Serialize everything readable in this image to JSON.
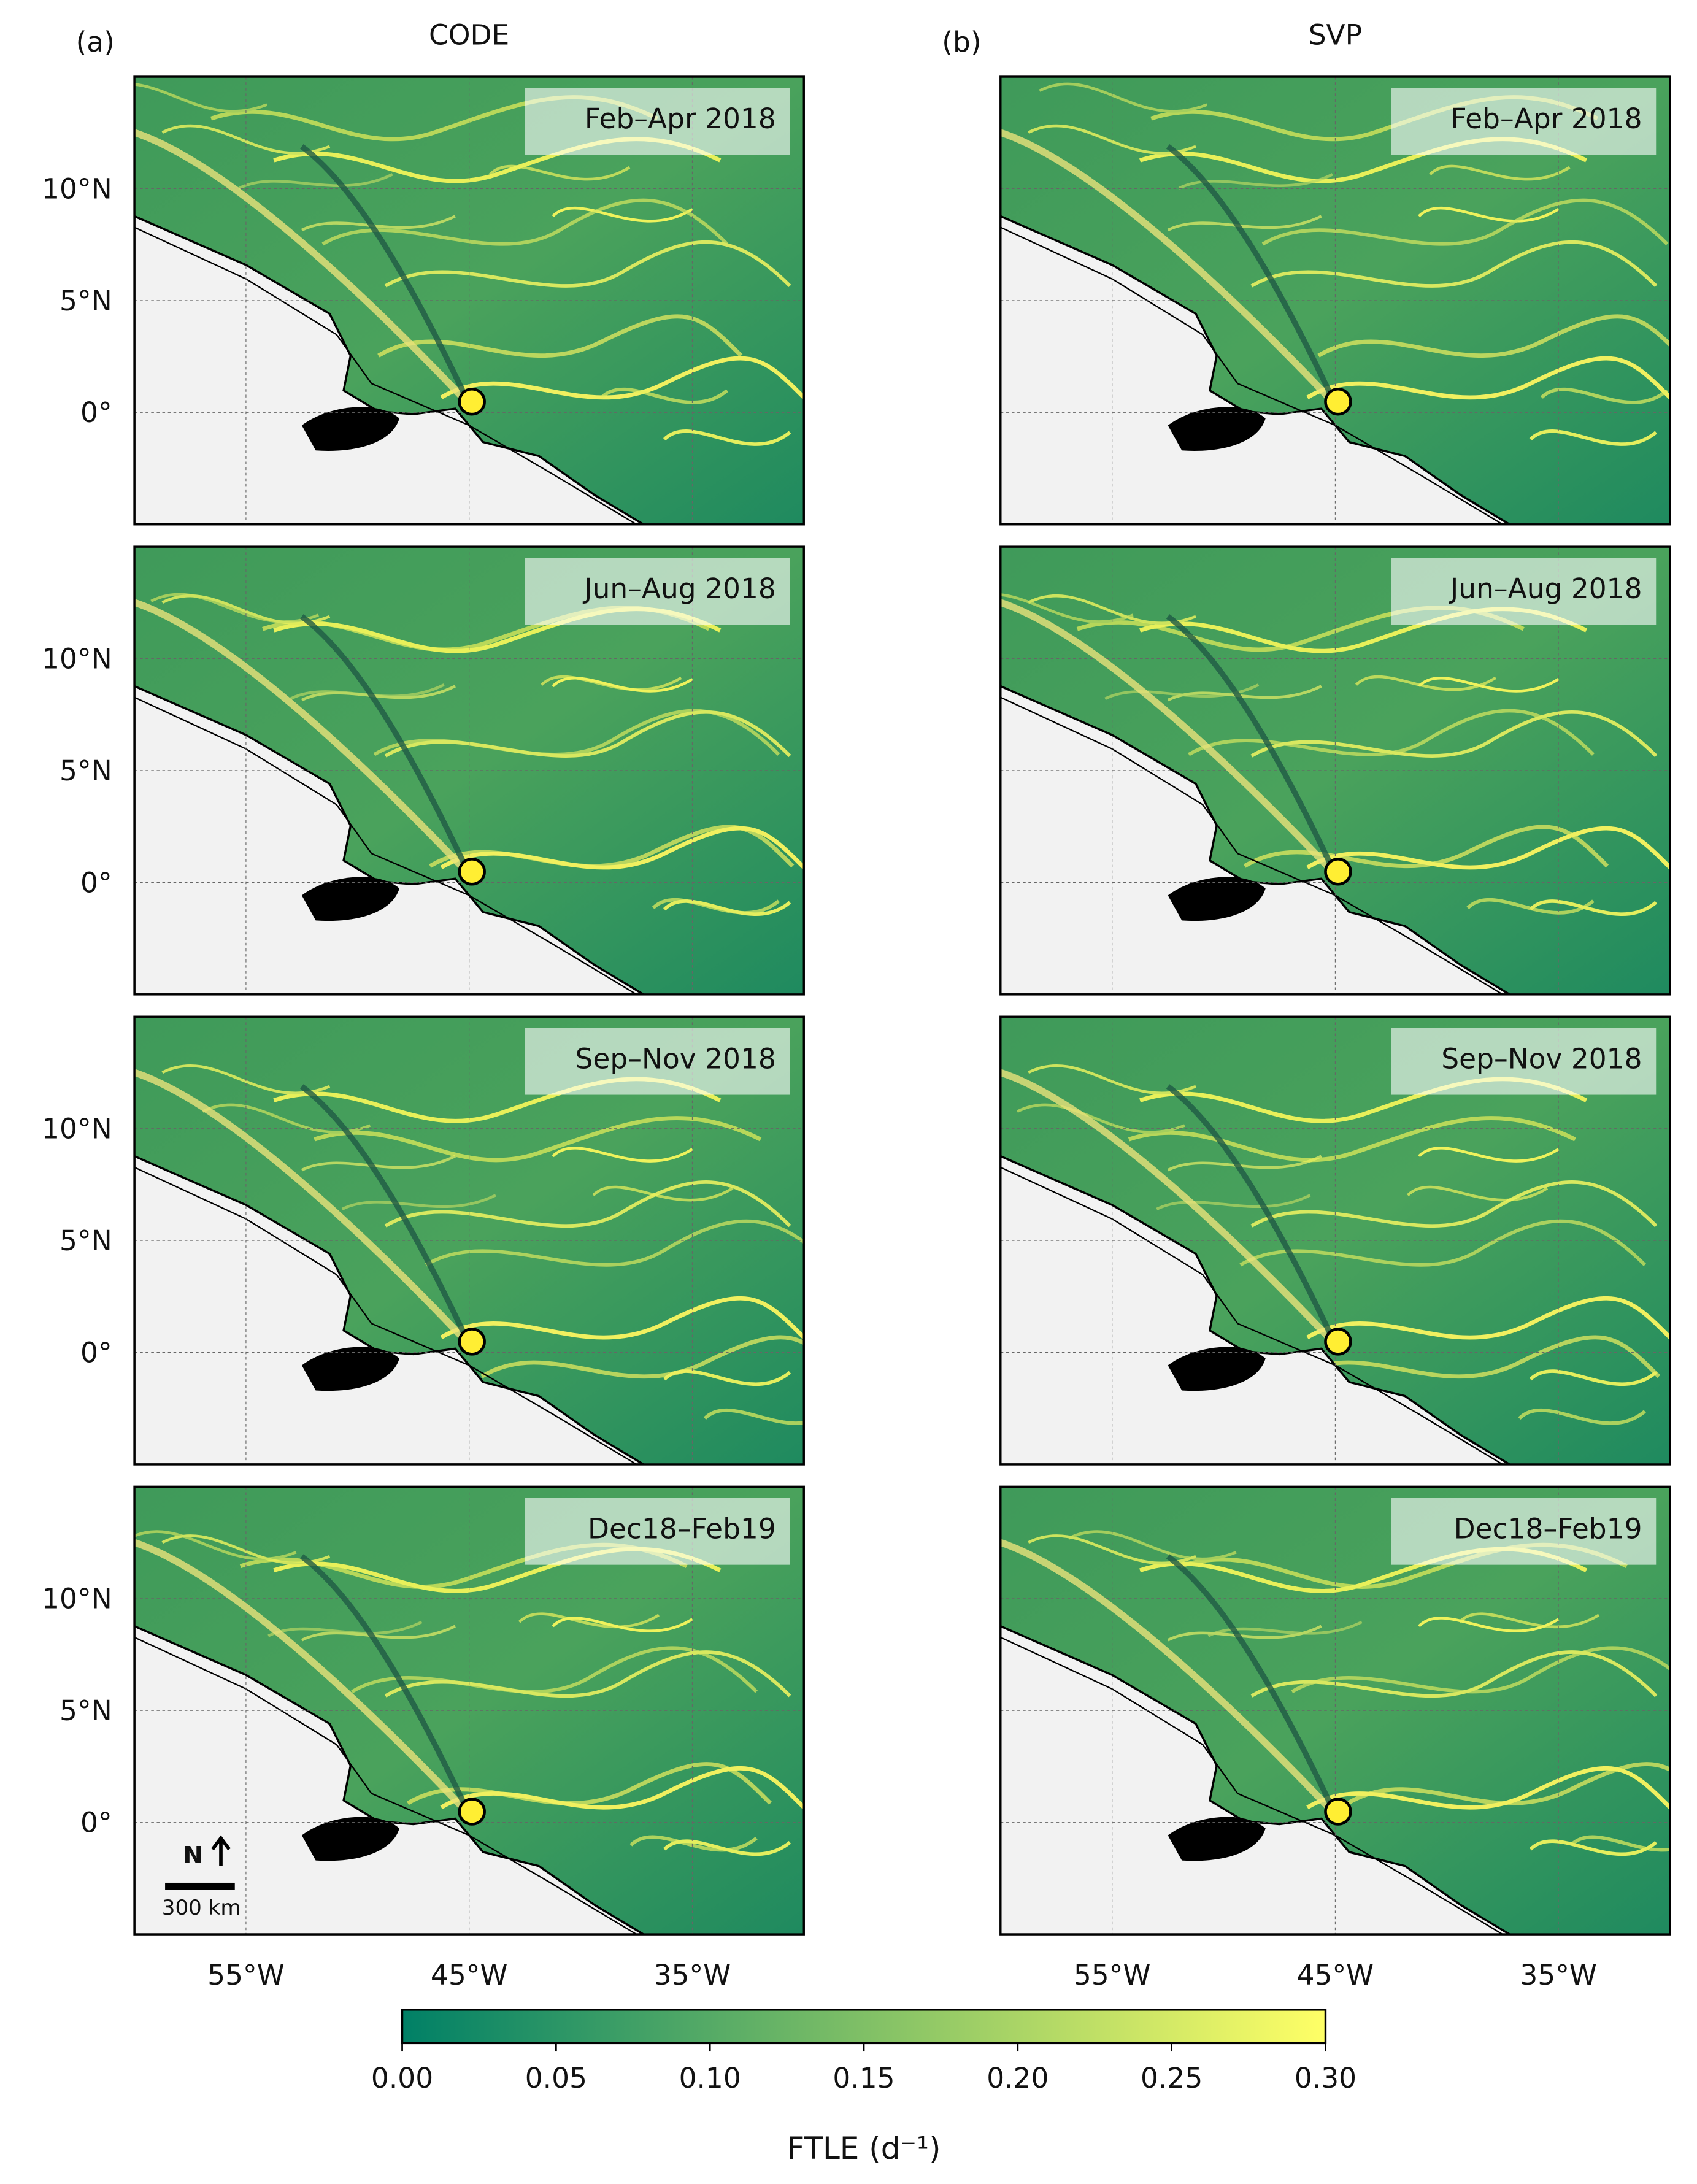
{
  "columns": [
    {
      "label": "(a)",
      "title": "CODE"
    },
    {
      "label": "(b)",
      "title": "SVP"
    }
  ],
  "periods": [
    "Feb–Apr 2018",
    "Jun–Aug 2018",
    "Sep–Nov 2018",
    "Dec18–Feb19"
  ],
  "map": {
    "lonlim": [
      -60,
      -30
    ],
    "latlim": [
      -5,
      15
    ],
    "lat_ticks": [
      {
        "value": 10,
        "label": "10°N"
      },
      {
        "value": 5,
        "label": "5°N"
      },
      {
        "value": 0,
        "label": "0°"
      }
    ],
    "lon_ticks": [
      {
        "value": -55,
        "label": "55°W"
      },
      {
        "value": -45,
        "label": "45°W"
      },
      {
        "value": -35,
        "label": "35°W"
      }
    ]
  },
  "scale_bar": {
    "north": "N",
    "distance": "300 km"
  },
  "colorbar": {
    "label": "FTLE (d⁻¹)",
    "lim": [
      0,
      0.3
    ],
    "colors": [
      "#008066",
      "#ffff66"
    ],
    "ticks": [
      {
        "value": 0,
        "label": "0.00"
      },
      {
        "value": 0.05,
        "label": "0.05"
      },
      {
        "value": 0.1,
        "label": "0.10"
      },
      {
        "value": 0.15,
        "label": "0.15"
      },
      {
        "value": 0.2,
        "label": "0.20"
      },
      {
        "value": 0.25,
        "label": "0.25"
      },
      {
        "value": 0.3,
        "label": "0.30"
      }
    ]
  }
}
